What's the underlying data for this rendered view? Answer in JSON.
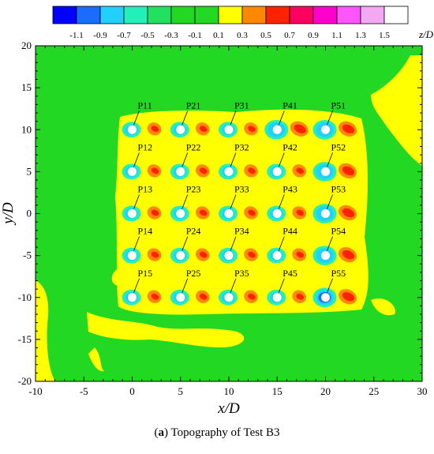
{
  "chart_data": {
    "type": "heatmap",
    "title": "",
    "xlabel": "x/D",
    "ylabel": "y/D",
    "xlim": [
      -10,
      30
    ],
    "ylim": [
      -20,
      20
    ],
    "xticks": [
      "-10",
      "-5",
      "0",
      "5",
      "10",
      "15",
      "20",
      "25",
      "30"
    ],
    "yticks": [
      "20",
      "15",
      "10",
      "5",
      "0",
      "-5",
      "-10",
      "-15",
      "-20"
    ],
    "colorbar": {
      "label": "z/D",
      "ticks": [
        "-1.1",
        "-0.9",
        "-0.7",
        "-0.5",
        "-0.3",
        "-0.1",
        "0.1",
        "0.3",
        "0.5",
        "0.7",
        "0.9",
        "1.1",
        "1.3",
        "1.5"
      ],
      "colors": [
        "#0000ff",
        "#1a6dff",
        "#22d0ff",
        "#22f0b8",
        "#22e060",
        "#22d822",
        "#22d822",
        "#ffff00",
        "#ff8800",
        "#ff2200",
        "#ff0060",
        "#ff00cc",
        "#ff55ff",
        "#f4a8f4",
        "#ffffff"
      ]
    },
    "piles": [
      {
        "label": "P11",
        "x": 0,
        "y": 10
      },
      {
        "label": "P21",
        "x": 5,
        "y": 10
      },
      {
        "label": "P31",
        "x": 10,
        "y": 10
      },
      {
        "label": "P41",
        "x": 15,
        "y": 10
      },
      {
        "label": "P51",
        "x": 20,
        "y": 10
      },
      {
        "label": "P12",
        "x": 0,
        "y": 5
      },
      {
        "label": "P22",
        "x": 5,
        "y": 5
      },
      {
        "label": "P32",
        "x": 10,
        "y": 5
      },
      {
        "label": "P42",
        "x": 15,
        "y": 5
      },
      {
        "label": "P52",
        "x": 20,
        "y": 5
      },
      {
        "label": "P13",
        "x": 0,
        "y": 0
      },
      {
        "label": "P23",
        "x": 5,
        "y": 0
      },
      {
        "label": "P33",
        "x": 10,
        "y": 0
      },
      {
        "label": "P43",
        "x": 15,
        "y": 0
      },
      {
        "label": "P53",
        "x": 20,
        "y": 0
      },
      {
        "label": "P14",
        "x": 0,
        "y": -5
      },
      {
        "label": "P24",
        "x": 5,
        "y": -5
      },
      {
        "label": "P34",
        "x": 10,
        "y": -5
      },
      {
        "label": "P44",
        "x": 15,
        "y": -5
      },
      {
        "label": "P54",
        "x": 20,
        "y": -5
      },
      {
        "label": "P15",
        "x": 0,
        "y": -10
      },
      {
        "label": "P25",
        "x": 5,
        "y": -10
      },
      {
        "label": "P35",
        "x": 10,
        "y": -10
      },
      {
        "label": "P45",
        "x": 15,
        "y": -10
      },
      {
        "label": "P55",
        "x": 20,
        "y": -10
      }
    ]
  },
  "caption": {
    "prefix": "(",
    "letter": "a",
    "text": ") Topography of Test B3"
  }
}
